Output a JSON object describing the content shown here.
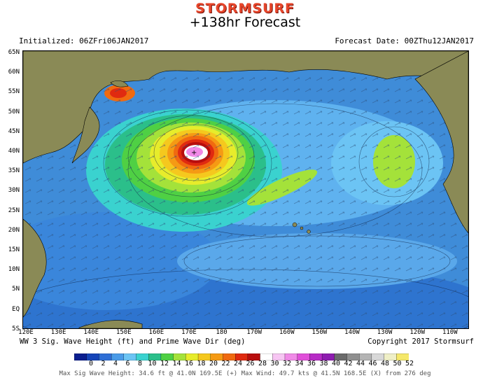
{
  "header": {
    "logo": "STORMSURF",
    "title": "+138hr Forecast",
    "initialized": "Initialized: 06ZFri06JAN2017",
    "forecast_date": "Forecast Date: 00ZThu12JAN2017"
  },
  "map": {
    "lat_labels": [
      "65N",
      "60N",
      "55N",
      "50N",
      "45N",
      "40N",
      "35N",
      "30N",
      "25N",
      "20N",
      "15N",
      "10N",
      "5N",
      "EQ",
      "5S"
    ],
    "lon_labels": [
      "120E",
      "130E",
      "140E",
      "150E",
      "160E",
      "170E",
      "180",
      "170W",
      "160W",
      "150W",
      "140W",
      "130W",
      "120W",
      "110W"
    ],
    "land_color": "#8a8a56",
    "ocean_base_color": "#3f8cd8",
    "storm_center_label": "Max wave center"
  },
  "footer": {
    "subtitle": "WW 3 Sig. Wave Height (ft) and Prime Wave Dir (deg)",
    "copyright": "Copyright 2017 Stormsurf",
    "stats": "Max Sig Wave Height: 34.6 ft @ 41.0N 169.5E (+)   Max Wind: 49.7 kts @ 41.5N 168.5E (X) from 276 deg"
  },
  "colorbar": {
    "labels": [
      "0",
      "2",
      "4",
      "6",
      "8",
      "10",
      "12",
      "14",
      "16",
      "18",
      "20",
      "22",
      "24",
      "26",
      "28",
      "30",
      "32",
      "34",
      "36",
      "38",
      "40",
      "42",
      "44",
      "46",
      "48",
      "50",
      "52"
    ],
    "colors": [
      "#0b1f8f",
      "#1544b8",
      "#2f6fd6",
      "#4a9be8",
      "#6cc4f4",
      "#3ad2cf",
      "#2bbf8a",
      "#4fd044",
      "#a4e23a",
      "#e7ec2b",
      "#f5c81e",
      "#f59a14",
      "#f06a10",
      "#e02a10",
      "#b80e0e",
      "#ffffff",
      "#f7c6f3",
      "#f08ae7",
      "#e04fd9",
      "#b72bc6",
      "#8e1db0",
      "#6b6b6b",
      "#8f8f8f",
      "#b4b4b4",
      "#d8d8d8",
      "#efefc6",
      "#f5e86a"
    ]
  }
}
